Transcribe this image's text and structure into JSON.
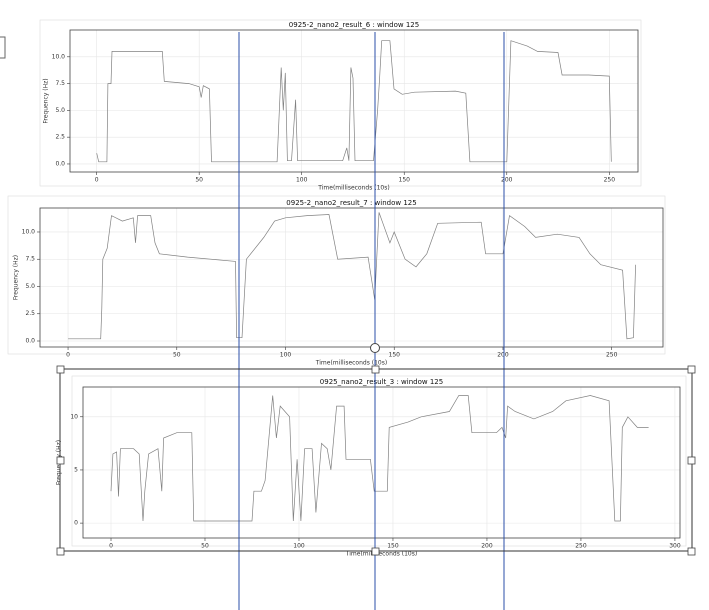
{
  "chart_data": [
    {
      "type": "line",
      "title": "0925-2_nano2_result_6 : window 125",
      "x_label": "Time(milliseconds (10s)",
      "y_label": "Frequency (Hz)",
      "color": "#808080",
      "grid": true,
      "xlim": [
        -13,
        264
      ],
      "xticks": [
        0,
        50,
        100,
        150,
        200,
        250
      ],
      "ylim": [
        -0.75,
        12.5
      ],
      "yticks": [
        {
          "value": 0,
          "label": "0.0"
        },
        {
          "value": 2.5,
          "label": "2.5"
        },
        {
          "value": 5,
          "label": "5.0"
        },
        {
          "value": 7.5,
          "label": "7.5"
        },
        {
          "value": 10,
          "label": "10.0"
        }
      ],
      "x": [
        0,
        1,
        2,
        5,
        5.5,
        7,
        7.5,
        32,
        33,
        45,
        50,
        51,
        52,
        55,
        56,
        80,
        88,
        90,
        91,
        92,
        93,
        95,
        97,
        98,
        110,
        120,
        122,
        123,
        124,
        125,
        126,
        135,
        137,
        138,
        139,
        143,
        145,
        149,
        155,
        175,
        180,
        182,
        200,
        202,
        210,
        215,
        225,
        227,
        240,
        250,
        251
      ],
      "values": [
        1,
        0.2,
        0.2,
        0.2,
        7.5,
        7.5,
        10.5,
        10.5,
        7.7,
        7.5,
        7.2,
        6.2,
        7.3,
        7,
        0.2,
        0.2,
        0.2,
        9,
        5,
        8.5,
        0.3,
        0.3,
        6,
        0.3,
        0.3,
        0.3,
        1.5,
        0.3,
        9,
        8,
        0.3,
        0.3,
        5,
        8,
        11.5,
        11.5,
        7,
        6.5,
        6.7,
        6.8,
        6.6,
        0.2,
        0.2,
        11.5,
        11,
        10.5,
        10.4,
        8.3,
        8.3,
        8.2,
        0.2
      ]
    },
    {
      "type": "line",
      "title": "0925-2_nano2_result_7 : window 125",
      "x_label": "Time(milliseconds (10s)",
      "y_label": "Frequency (Hz)",
      "color": "#808080",
      "grid": true,
      "xlim": [
        -12.9,
        273.6
      ],
      "xticks": [
        0,
        50,
        100,
        150,
        200,
        250
      ],
      "ylim": [
        -0.55,
        12.2
      ],
      "yticks": [
        {
          "value": 0,
          "label": "0.0"
        },
        {
          "value": 2.5,
          "label": "2.5"
        },
        {
          "value": 5,
          "label": "5.0"
        },
        {
          "value": 7.5,
          "label": "7.5"
        },
        {
          "value": 10,
          "label": "10.0"
        }
      ],
      "x": [
        0,
        15,
        15.5,
        16,
        18,
        20,
        25,
        30,
        31,
        32,
        38,
        40,
        42,
        55,
        77,
        77.5,
        80,
        82,
        90,
        95,
        100,
        110,
        120,
        124,
        138,
        141,
        143,
        148,
        150,
        155,
        160,
        165,
        170,
        190,
        192,
        200,
        203,
        210,
        215,
        225,
        235,
        240,
        245,
        255,
        257,
        260,
        261
      ],
      "values": [
        0.2,
        0.2,
        3,
        7.5,
        8.5,
        11.5,
        11,
        11.3,
        9,
        11.5,
        11.5,
        9,
        8,
        7.7,
        7.3,
        0.3,
        0.3,
        7.5,
        9.5,
        11,
        11.3,
        11.5,
        11.6,
        7.5,
        7.7,
        3.8,
        11.8,
        9,
        10,
        7.5,
        6.8,
        8,
        10.8,
        10.9,
        8,
        8,
        11.5,
        10.5,
        9.5,
        9.8,
        9.5,
        8,
        7,
        6.5,
        0.2,
        0.3,
        7
      ]
    },
    {
      "type": "line",
      "title": "0925_nano2_result_3 : window 125",
      "x_label": "Time(milliseconds (10s)",
      "y_label": "Frequency (Hz)",
      "color": "#808080",
      "grid": true,
      "xlim": [
        -14.9,
        302.7
      ],
      "xticks": [
        0,
        50,
        100,
        150,
        200,
        250,
        300
      ],
      "ylim": [
        -1.4,
        12.8
      ],
      "yticks": [
        0,
        5,
        10
      ],
      "x": [
        0,
        1,
        3,
        4,
        5,
        10,
        12,
        15,
        17,
        18,
        20,
        25,
        27,
        28,
        35,
        43,
        44,
        65,
        75,
        76,
        80,
        82,
        85,
        86,
        88,
        90,
        95,
        97,
        99,
        101,
        103,
        107,
        109,
        112,
        115,
        117,
        120,
        124,
        125,
        138,
        140,
        147,
        148,
        158,
        165,
        180,
        185,
        190,
        192,
        205,
        208,
        210,
        211,
        215,
        225,
        235,
        242,
        255,
        265,
        268,
        271,
        272,
        275,
        280,
        286
      ],
      "values": [
        3,
        6.5,
        6.7,
        2.5,
        7,
        7,
        7,
        6.5,
        0.2,
        3,
        6.5,
        7,
        3,
        8,
        8.5,
        8.5,
        0.2,
        0.2,
        0.2,
        3,
        3,
        4,
        10,
        12,
        8,
        11,
        10,
        0.2,
        6,
        0.2,
        7,
        7,
        1,
        7.5,
        7,
        5,
        11,
        11,
        6,
        6,
        3,
        3,
        9,
        9.5,
        10,
        10.5,
        12,
        12,
        8.5,
        8.5,
        9,
        8,
        11,
        10.5,
        9.8,
        10.5,
        11.5,
        12,
        11.5,
        0.2,
        0.2,
        9,
        10,
        9,
        9
      ]
    }
  ]
}
